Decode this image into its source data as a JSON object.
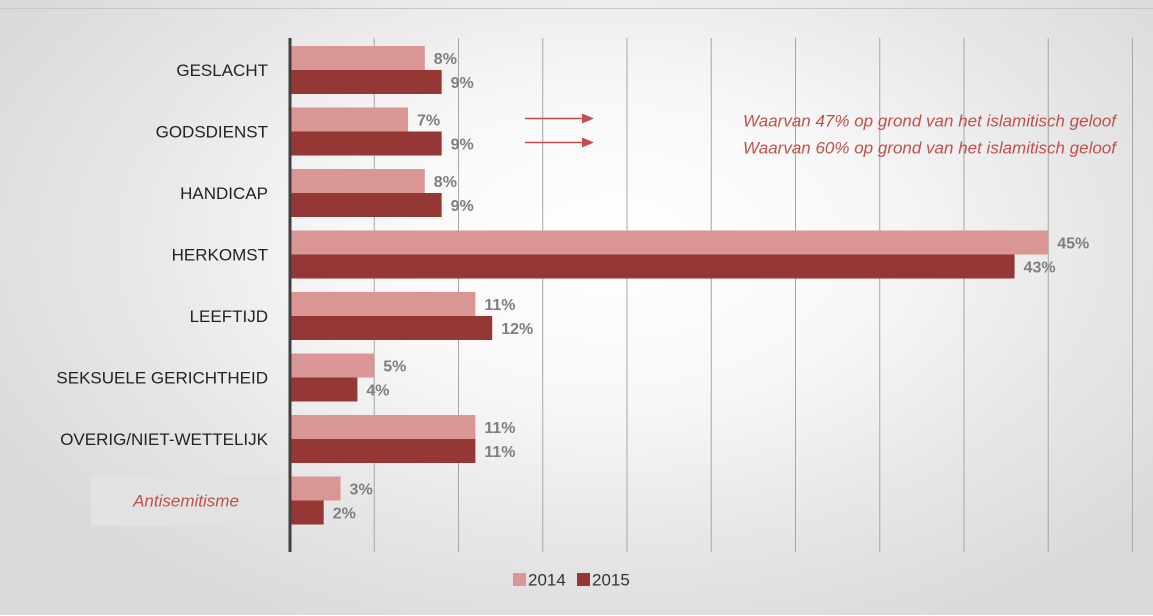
{
  "chart_data": {
    "type": "bar",
    "orientation": "horizontal",
    "categories": [
      "GESLACHT",
      "GODSDIENST",
      "HANDICAP",
      "HERKOMST",
      "LEEFTIJD",
      "SEKSUELE GERICHTHEID",
      "OVERIG/NIET-WETTELIJK",
      "Antisemitisme"
    ],
    "series": [
      {
        "name": "2014",
        "values": [
          8,
          7,
          8,
          45,
          11,
          5,
          11,
          3
        ],
        "labels": [
          "8%",
          "7%",
          "8%",
          "45%",
          "11%",
          "5%",
          "11%",
          "3%"
        ],
        "color": "#d99694"
      },
      {
        "name": "2015",
        "values": [
          9,
          9,
          9,
          43,
          12,
          4,
          11,
          2
        ],
        "labels": [
          "9%",
          "9%",
          "9%",
          "43%",
          "12%",
          "4%",
          "11%",
          "2%"
        ],
        "color": "#953735"
      }
    ],
    "xlim": [
      0,
      50
    ],
    "grid": true,
    "legend": "bottom-center",
    "highlight_category": "Antisemitisme",
    "annotations": [
      {
        "category": "GODSDIENST",
        "series": "2014",
        "text": "Waarvan 47% op grond van het islamitisch geloof"
      },
      {
        "category": "GODSDIENST",
        "series": "2015",
        "text": "Waarvan 60% op grond van het islamitisch geloof"
      }
    ]
  },
  "colors": {
    "axis": "#404040",
    "gridline": "#a6a6a6",
    "annotation": "#c0504d",
    "value_label": "#7f7f7f",
    "highlight_box": "#e2e2e2"
  }
}
